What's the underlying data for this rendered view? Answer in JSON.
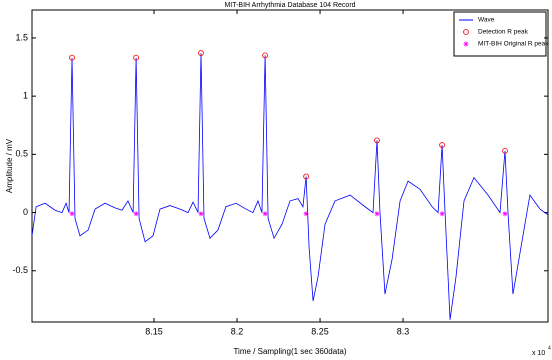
{
  "chart_data": {
    "type": "line",
    "title": "MIT-BIH Arrhythmia Database  104 Record",
    "x_label": "Time / Sampling(1 sec 360data)",
    "y_label": "Amplitude / mV",
    "x_multiplier": "x 10",
    "x_multiplier_exp": "4",
    "xlim": [
      8.0765,
      8.3873
    ],
    "ylim": [
      -0.94,
      1.74
    ],
    "xticks": [
      8.15,
      8.2,
      8.25,
      8.3
    ],
    "yticks": [
      -0.5,
      0,
      0.5,
      1,
      1.5
    ],
    "grid": false,
    "legend": "top-right",
    "series": [
      {
        "name": "Wave",
        "color": "#0000ff",
        "marker": "none",
        "x": [
          8.0765,
          8.079,
          8.0844,
          8.0904,
          8.0946,
          8.097,
          8.0988,
          8.1006,
          8.1024,
          8.1054,
          8.1103,
          8.1145,
          8.1205,
          8.1265,
          8.1307,
          8.1343,
          8.1374,
          8.1392,
          8.141,
          8.1446,
          8.1494,
          8.1536,
          8.1596,
          8.1657,
          8.1705,
          8.1735,
          8.1765,
          8.1783,
          8.1801,
          8.1837,
          8.1885,
          8.1933,
          8.1994,
          8.2054,
          8.2096,
          8.2126,
          8.215,
          8.2169,
          8.2187,
          8.2223,
          8.2271,
          8.2319,
          8.2367,
          8.2397,
          8.2416,
          8.2434,
          8.2458,
          8.2488,
          8.253,
          8.259,
          8.2681,
          8.2771,
          8.2819,
          8.2843,
          8.2861,
          8.2891,
          8.2934,
          8.2982,
          8.303,
          8.3102,
          8.3175,
          8.3211,
          8.3235,
          8.3253,
          8.3283,
          8.3319,
          8.3367,
          8.3427,
          8.3512,
          8.3584,
          8.3614,
          8.3632,
          8.3662,
          8.3704,
          8.3764,
          8.3825,
          8.3873
        ],
        "values": [
          -0.2,
          0.05,
          0.08,
          0.02,
          0.0,
          0.08,
          0.0,
          1.33,
          -0.05,
          -0.2,
          -0.15,
          0.03,
          0.08,
          0.04,
          0.02,
          0.1,
          0.0,
          1.33,
          -0.05,
          -0.25,
          -0.2,
          0.03,
          0.06,
          0.03,
          0.0,
          0.09,
          0.0,
          1.37,
          -0.05,
          -0.22,
          -0.15,
          0.05,
          0.08,
          0.03,
          0.0,
          0.1,
          0.0,
          1.35,
          -0.05,
          -0.22,
          -0.1,
          0.1,
          0.12,
          0.05,
          0.31,
          -0.3,
          -0.76,
          -0.55,
          -0.1,
          0.1,
          0.15,
          0.05,
          0.0,
          0.62,
          0.0,
          -0.7,
          -0.4,
          0.1,
          0.27,
          0.2,
          0.05,
          0.0,
          0.58,
          0.0,
          -0.92,
          -0.55,
          0.1,
          0.3,
          0.15,
          0.0,
          0.53,
          0.0,
          -0.7,
          -0.35,
          0.15,
          0.03,
          -0.02
        ]
      },
      {
        "name": "Detection R peak",
        "color": "#ff0000",
        "marker": "circle",
        "x": [
          8.1006,
          8.1392,
          8.1783,
          8.2169,
          8.2416,
          8.2843,
          8.3235,
          8.3614
        ],
        "values": [
          1.33,
          1.33,
          1.37,
          1.35,
          0.31,
          0.62,
          0.58,
          0.53
        ]
      },
      {
        "name": "MIT-BIH Original R peak",
        "color": "#ff00ff",
        "marker": "star",
        "x": [
          8.1006,
          8.1392,
          8.1783,
          8.2169,
          8.2416,
          8.2843,
          8.3235,
          8.3614
        ],
        "values": [
          -0.01,
          -0.01,
          -0.01,
          -0.01,
          -0.01,
          -0.01,
          -0.01,
          -0.01
        ]
      }
    ]
  }
}
